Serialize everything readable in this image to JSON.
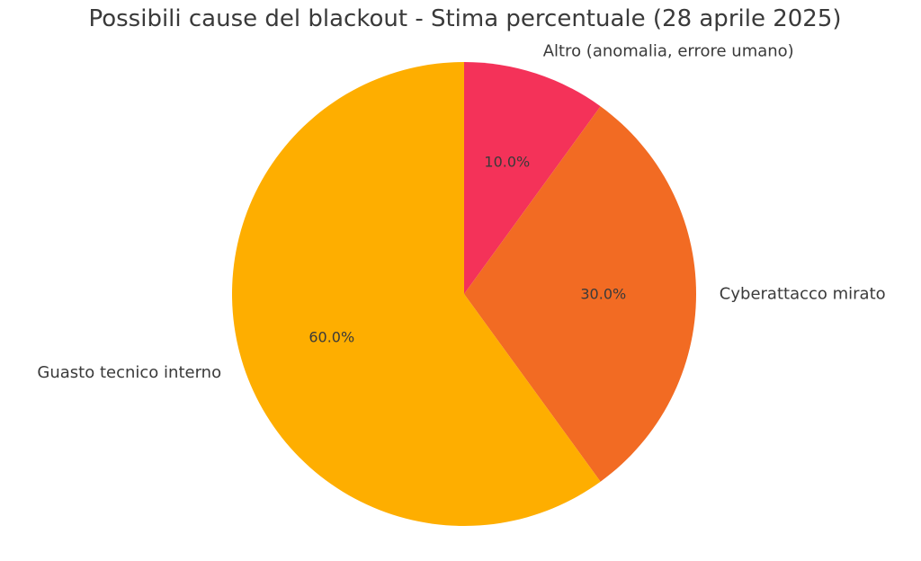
{
  "chart_data": {
    "type": "pie",
    "title": "Possibili cause del blackout - Stima percentuale (28 aprile 2025)",
    "slices": [
      {
        "label": "Altro (anomalia, errore umano)",
        "value": 10.0,
        "pct_label": "10.0%",
        "color": "#f43259"
      },
      {
        "label": "Cyberattacco mirato",
        "value": 30.0,
        "pct_label": "30.0%",
        "color": "#f26b23"
      },
      {
        "label": "Guasto tecnico interno",
        "value": 60.0,
        "pct_label": "60.0%",
        "color": "#feae00"
      }
    ],
    "start_angle": "90° (top), clockwise"
  }
}
